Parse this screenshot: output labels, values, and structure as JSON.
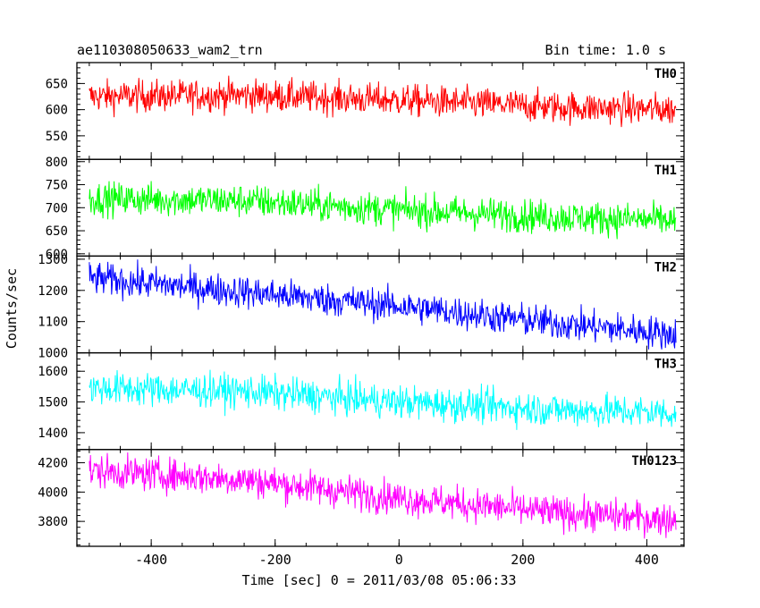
{
  "chart_data": {
    "type": "line",
    "title_left": "ae110308050633_wam2_trn",
    "title_right": "Bin time: 1.0 s",
    "xlabel": "Time [sec] 0 = 2011/03/08 05:06:33",
    "ylabel": "Counts/sec",
    "xlim": [
      -520,
      460
    ],
    "xticks": [
      "-400",
      "-200",
      "0",
      "200",
      "400"
    ],
    "xtick_values": [
      -400,
      -200,
      0,
      200,
      400
    ],
    "sample_range": [
      -500,
      447
    ],
    "panels": [
      {
        "name": "TH0",
        "color": "#ff0000",
        "ylim": [
          505,
          690
        ],
        "yticks": [
          "550",
          "600",
          "650"
        ],
        "ytick_values": [
          550,
          600,
          650
        ],
        "trend_x": [
          -500,
          -250,
          0,
          250,
          447
        ],
        "trend_y": [
          625,
          628,
          618,
          605,
          600
        ],
        "noise_amplitude": 28
      },
      {
        "name": "TH1",
        "color": "#00ff00",
        "ylim": [
          595,
          805
        ],
        "yticks": [
          "600",
          "650",
          "700",
          "750",
          "800"
        ],
        "ytick_values": [
          600,
          650,
          700,
          750,
          800
        ],
        "trend_x": [
          -500,
          -250,
          0,
          250,
          447
        ],
        "trend_y": [
          720,
          715,
          695,
          680,
          672
        ],
        "noise_amplitude": 33
      },
      {
        "name": "TH2",
        "color": "#0000ff",
        "ylim": [
          1000,
          1310
        ],
        "yticks": [
          "1000",
          "1100",
          "1200",
          "1300"
        ],
        "ytick_values": [
          1000,
          1100,
          1200,
          1300
        ],
        "trend_x": [
          -500,
          -250,
          0,
          250,
          447
        ],
        "trend_y": [
          1240,
          1195,
          1150,
          1095,
          1060
        ],
        "noise_amplitude": 48
      },
      {
        "name": "TH3",
        "color": "#00ffff",
        "ylim": [
          1345,
          1660
        ],
        "yticks": [
          "1400",
          "1500",
          "1600"
        ],
        "ytick_values": [
          1400,
          1500,
          1600
        ],
        "trend_x": [
          -500,
          -250,
          0,
          250,
          447
        ],
        "trend_y": [
          1545,
          1535,
          1500,
          1475,
          1465
        ],
        "noise_amplitude": 50
      },
      {
        "name": "TH0123",
        "color": "#ff00ff",
        "ylim": [
          3630,
          4290
        ],
        "yticks": [
          "3800",
          "4000",
          "4200"
        ],
        "ytick_values": [
          3800,
          4000,
          4200
        ],
        "trend_x": [
          -500,
          -250,
          0,
          250,
          447
        ],
        "trend_y": [
          4145,
          4085,
          3960,
          3860,
          3810
        ],
        "noise_amplitude": 105
      }
    ]
  }
}
